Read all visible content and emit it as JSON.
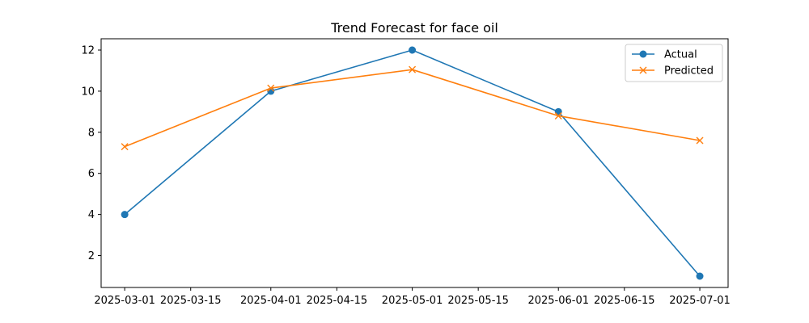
{
  "chart_data": {
    "type": "line",
    "title": "Trend Forecast for face oil",
    "xlabel": "",
    "ylabel": "",
    "x": [
      "2025-03-01",
      "2025-04-01",
      "2025-05-01",
      "2025-06-01",
      "2025-07-01"
    ],
    "x_ticks": [
      "2025-03-01",
      "2025-03-15",
      "2025-04-01",
      "2025-04-15",
      "2025-05-01",
      "2025-05-15",
      "2025-06-01",
      "2025-06-15",
      "2025-07-01"
    ],
    "xlim": [
      "2025-02-24",
      "2025-07-07"
    ],
    "y_ticks": [
      2,
      4,
      6,
      8,
      10,
      12
    ],
    "ylim": [
      0.45,
      12.55
    ],
    "grid": false,
    "legend_position": "top-right",
    "series": [
      {
        "name": "Actual",
        "color": "#1f77b4",
        "marker": "circle",
        "values": [
          4,
          10,
          12,
          9,
          1
        ]
      },
      {
        "name": "Predicted",
        "color": "#ff7f0e",
        "marker": "x",
        "values": [
          7.3,
          10.15,
          11.05,
          8.8,
          7.6
        ]
      }
    ]
  }
}
